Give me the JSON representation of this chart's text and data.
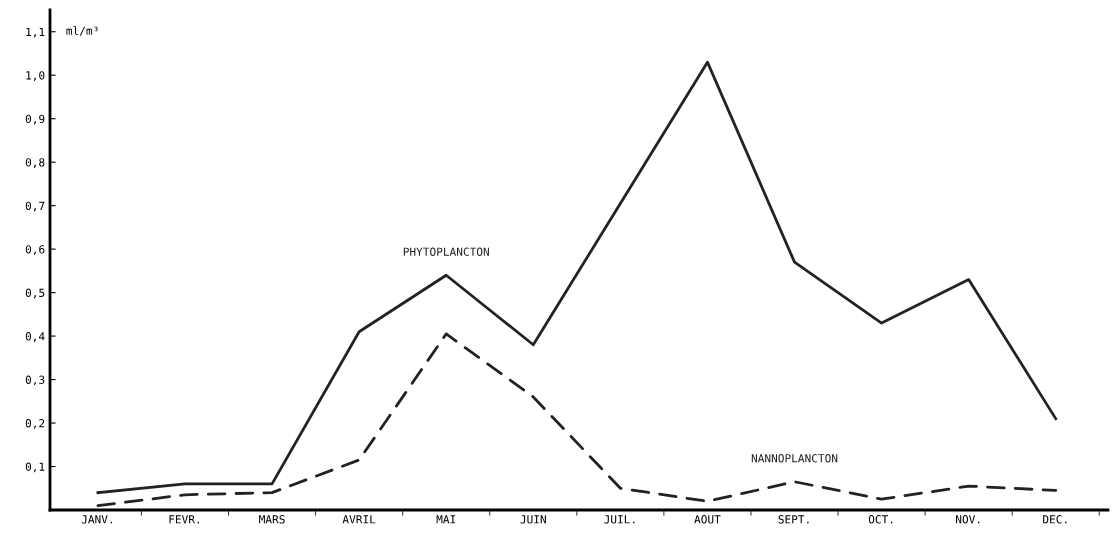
{
  "chart_data": {
    "type": "line",
    "ylabel": "ml/m³",
    "categories": [
      "JANV.",
      "FEVR.",
      "MARS",
      "AVRIL",
      "MAI",
      "JUIN",
      "JUIL.",
      "AOUT",
      "SEPT.",
      "OCT.",
      "NOV.",
      "DEC."
    ],
    "series": [
      {
        "name": "PHYTOPLANCTON",
        "color": "#222222",
        "line_style": "solid",
        "values": [
          0.04,
          0.06,
          0.06,
          0.41,
          0.54,
          0.38,
          0.705,
          1.03,
          0.57,
          0.43,
          0.53,
          0.21
        ]
      },
      {
        "name": "NANNOPLANCTON",
        "color": "#222222",
        "line_style": "dashed",
        "values": [
          0.01,
          0.035,
          0.04,
          0.115,
          0.405,
          0.26,
          0.05,
          0.02,
          0.065,
          0.025,
          0.055,
          0.045
        ]
      }
    ],
    "ylim": [
      0,
      1.15
    ],
    "yticks": [
      {
        "value": 0.1,
        "label": "0,1"
      },
      {
        "value": 0.2,
        "label": "0,2"
      },
      {
        "value": 0.3,
        "label": "0,3"
      },
      {
        "value": 0.4,
        "label": "0,4"
      },
      {
        "value": 0.5,
        "label": "0,5"
      },
      {
        "value": 0.6,
        "label": "0,6"
      },
      {
        "value": 0.7,
        "label": "0,7"
      },
      {
        "value": 0.8,
        "label": "0,8"
      },
      {
        "value": 0.9,
        "label": "0,9"
      },
      {
        "value": 1.0,
        "label": "1,0"
      },
      {
        "value": 1.1,
        "label": "1,1"
      }
    ],
    "grid": false,
    "legend": false,
    "marker": "none"
  }
}
